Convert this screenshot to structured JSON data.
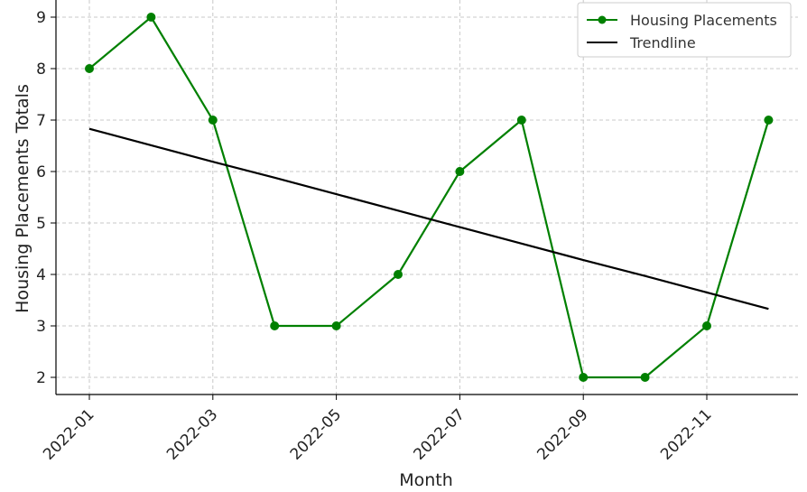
{
  "chart_data": {
    "type": "line",
    "xlabel": "Month",
    "ylabel": "Housing Placements Totals",
    "x": [
      "2022-01",
      "2022-02",
      "2022-03",
      "2022-04",
      "2022-05",
      "2022-06",
      "2022-07",
      "2022-08",
      "2022-09",
      "2022-10",
      "2022-11",
      "2022-12"
    ],
    "x_tick_labels": [
      "2022-01",
      "2022-03",
      "2022-05",
      "2022-07",
      "2022-09",
      "2022-11"
    ],
    "y_ticks": [
      2,
      3,
      4,
      5,
      6,
      7,
      8,
      9
    ],
    "ylim": [
      1.7,
      9.3
    ],
    "grid": true,
    "legend_position": "top-right",
    "series": [
      {
        "name": "Housing Placements",
        "color": "#008000",
        "marker": "circle",
        "values": [
          8,
          9,
          7,
          3,
          3,
          4,
          6,
          7,
          2,
          2,
          3,
          7
        ]
      },
      {
        "name": "Trendline",
        "color": "#000000",
        "marker": "none",
        "values": [
          6.83,
          6.51,
          6.19,
          5.88,
          5.56,
          5.24,
          4.92,
          4.6,
          4.28,
          3.97,
          3.65,
          3.33
        ]
      }
    ]
  }
}
